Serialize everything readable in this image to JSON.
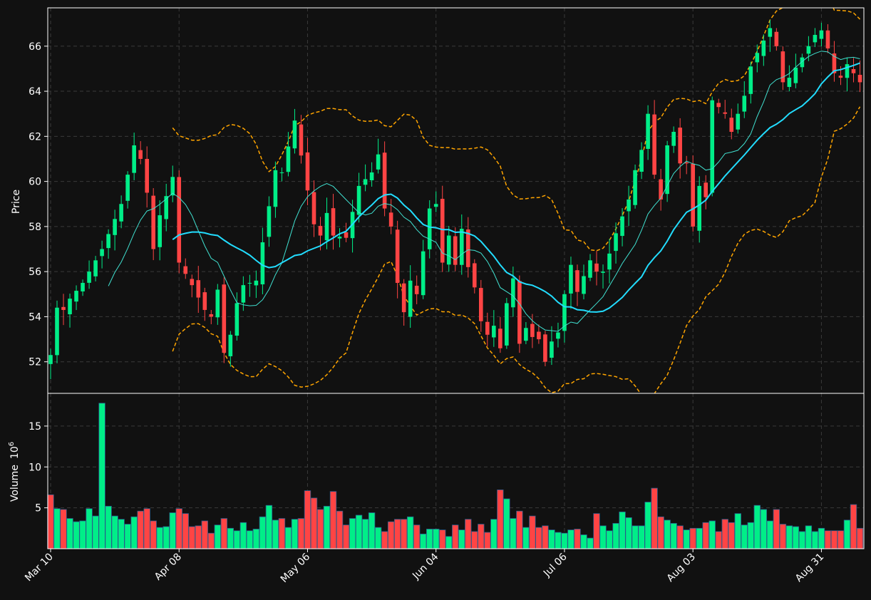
{
  "chart_data": {
    "type": "candlestick",
    "colors": {
      "background": "#111111",
      "up": "#00ee88",
      "down": "#ff4444",
      "sma_fast": "#40e0d0",
      "sma_slow": "#22ddff",
      "bands": "#ffa500",
      "grid": "#3a3a3a",
      "axis": "#ffffff"
    },
    "price_panel": {
      "ylabel": "Price",
      "ylim": [
        50.6,
        67.7
      ],
      "yticks": [
        52,
        54,
        56,
        58,
        60,
        62,
        64,
        66
      ]
    },
    "volume_panel": {
      "ylabel": "Volume",
      "ylabel_exp": "10",
      "ylabel_sup": "6",
      "ylim": [
        0,
        19
      ],
      "yticks": [
        5,
        10,
        15
      ]
    },
    "xticks": [
      {
        "i": 0,
        "label": "Mar 10"
      },
      {
        "i": 20,
        "label": "Apr 08"
      },
      {
        "i": 40,
        "label": "May 06"
      },
      {
        "i": 60,
        "label": "Jun 04"
      },
      {
        "i": 80,
        "label": "Jul 06"
      },
      {
        "i": 100,
        "label": "Aug 03"
      },
      {
        "i": 120,
        "label": "Aug 31"
      }
    ],
    "n_bars": 127,
    "grid": true,
    "close_anchors": [
      [
        0,
        52.3
      ],
      [
        1,
        54.4
      ],
      [
        2,
        54.3
      ],
      [
        3,
        54.8
      ],
      [
        5,
        55.5
      ],
      [
        7,
        56.5
      ],
      [
        8,
        57.0
      ],
      [
        11,
        59.0
      ],
      [
        13,
        61.6
      ],
      [
        14,
        61.0
      ],
      [
        15,
        59.5
      ],
      [
        16,
        57.0
      ],
      [
        17,
        58.5
      ],
      [
        19,
        60.2
      ],
      [
        20,
        56.4
      ],
      [
        22,
        55.4
      ],
      [
        24,
        54.3
      ],
      [
        25,
        54.0
      ],
      [
        26,
        55.2
      ],
      [
        27,
        52.4
      ],
      [
        28,
        53.2
      ],
      [
        29,
        54.6
      ],
      [
        30,
        55.4
      ],
      [
        32,
        55.6
      ],
      [
        33,
        57.3
      ],
      [
        35,
        60.5
      ],
      [
        36,
        60.4
      ],
      [
        38,
        62.7
      ],
      [
        40,
        59.6
      ],
      [
        41,
        58.1
      ],
      [
        42,
        57.6
      ],
      [
        43,
        58.6
      ],
      [
        44,
        57.6
      ],
      [
        46,
        57.5
      ],
      [
        48,
        59.8
      ],
      [
        50,
        60.4
      ],
      [
        51,
        61.2
      ],
      [
        52,
        58.8
      ],
      [
        53,
        58.0
      ],
      [
        54,
        55.5
      ],
      [
        55,
        54.2
      ],
      [
        56,
        55.6
      ],
      [
        57,
        55.0
      ],
      [
        59,
        58.8
      ],
      [
        60,
        59.0
      ],
      [
        61,
        56.4
      ],
      [
        62,
        57.6
      ],
      [
        63,
        56.3
      ],
      [
        64,
        57.9
      ],
      [
        65,
        56.2
      ],
      [
        66,
        55.3
      ],
      [
        67,
        53.8
      ],
      [
        68,
        53.2
      ],
      [
        69,
        53.6
      ],
      [
        70,
        52.6
      ],
      [
        71,
        54.6
      ],
      [
        72,
        55.7
      ],
      [
        73,
        52.8
      ],
      [
        74,
        53.5
      ],
      [
        75,
        53.1
      ],
      [
        76,
        53.0
      ],
      [
        77,
        52.0
      ],
      [
        78,
        52.9
      ],
      [
        79,
        53.3
      ],
      [
        80,
        55.0
      ],
      [
        81,
        56.3
      ],
      [
        82,
        55.1
      ],
      [
        84,
        56.5
      ],
      [
        85,
        56.0
      ],
      [
        86,
        56.0
      ],
      [
        87,
        56.8
      ],
      [
        88,
        57.7
      ],
      [
        90,
        59.2
      ],
      [
        91,
        60.5
      ],
      [
        92,
        61.4
      ],
      [
        93,
        63.0
      ],
      [
        94,
        60.3
      ],
      [
        95,
        59.2
      ],
      [
        96,
        61.6
      ],
      [
        97,
        62.2
      ],
      [
        98,
        60.8
      ],
      [
        99,
        60.8
      ],
      [
        100,
        58.0
      ],
      [
        101,
        59.8
      ],
      [
        102,
        59.3
      ],
      [
        103,
        63.6
      ],
      [
        104,
        63.3
      ],
      [
        105,
        63.0
      ],
      [
        106,
        62.2
      ],
      [
        107,
        63.0
      ],
      [
        108,
        63.8
      ],
      [
        109,
        65.1
      ],
      [
        110,
        65.7
      ],
      [
        112,
        66.8
      ],
      [
        113,
        66.0
      ],
      [
        114,
        64.4
      ],
      [
        115,
        64.6
      ],
      [
        117,
        65.5
      ],
      [
        118,
        66.0
      ],
      [
        119,
        66.5
      ],
      [
        120,
        66.7
      ],
      [
        121,
        65.9
      ],
      [
        122,
        64.8
      ],
      [
        123,
        64.6
      ],
      [
        124,
        65.2
      ],
      [
        126,
        64.4
      ]
    ],
    "volume_anchors": [
      [
        0,
        6.6
      ],
      [
        1,
        4.9
      ],
      [
        2,
        4.8
      ],
      [
        3,
        3.7
      ],
      [
        4,
        3.3
      ],
      [
        5,
        3.4
      ],
      [
        6,
        4.9
      ],
      [
        7,
        4.0
      ],
      [
        8,
        17.8
      ],
      [
        9,
        5.2
      ],
      [
        10,
        4.0
      ],
      [
        11,
        3.6
      ],
      [
        12,
        3.0
      ],
      [
        13,
        3.9
      ],
      [
        14,
        4.6
      ],
      [
        15,
        4.9
      ],
      [
        16,
        3.4
      ],
      [
        17,
        2.6
      ],
      [
        18,
        2.7
      ],
      [
        19,
        4.4
      ],
      [
        20,
        4.9
      ],
      [
        21,
        4.3
      ],
      [
        22,
        2.7
      ],
      [
        23,
        2.8
      ],
      [
        24,
        3.4
      ],
      [
        25,
        1.9
      ],
      [
        26,
        2.9
      ],
      [
        27,
        3.7
      ],
      [
        28,
        2.5
      ],
      [
        29,
        2.2
      ],
      [
        30,
        3.2
      ],
      [
        31,
        2.2
      ],
      [
        32,
        2.4
      ],
      [
        33,
        3.9
      ],
      [
        34,
        5.3
      ],
      [
        35,
        3.5
      ],
      [
        36,
        3.7
      ],
      [
        37,
        2.6
      ],
      [
        38,
        3.6
      ],
      [
        39,
        3.7
      ],
      [
        40,
        7.1
      ],
      [
        41,
        6.2
      ],
      [
        42,
        4.8
      ],
      [
        43,
        5.2
      ],
      [
        44,
        7.0
      ],
      [
        45,
        4.6
      ],
      [
        46,
        2.9
      ],
      [
        47,
        3.7
      ],
      [
        48,
        4.1
      ],
      [
        49,
        3.6
      ],
      [
        50,
        4.4
      ],
      [
        51,
        2.6
      ],
      [
        52,
        2.1
      ],
      [
        53,
        3.3
      ],
      [
        54,
        3.6
      ],
      [
        55,
        3.6
      ],
      [
        56,
        3.9
      ],
      [
        57,
        2.9
      ],
      [
        58,
        1.8
      ],
      [
        59,
        2.4
      ],
      [
        60,
        2.4
      ],
      [
        61,
        2.3
      ],
      [
        62,
        1.5
      ],
      [
        63,
        2.9
      ],
      [
        64,
        2.3
      ],
      [
        65,
        3.6
      ],
      [
        66,
        2.1
      ],
      [
        67,
        3.0
      ],
      [
        68,
        2.0
      ],
      [
        69,
        3.6
      ],
      [
        70,
        7.2
      ],
      [
        71,
        6.1
      ],
      [
        72,
        3.7
      ],
      [
        73,
        4.6
      ],
      [
        74,
        2.6
      ],
      [
        75,
        4.0
      ],
      [
        76,
        2.6
      ],
      [
        77,
        2.8
      ],
      [
        78,
        2.3
      ],
      [
        79,
        2.0
      ],
      [
        80,
        1.9
      ],
      [
        81,
        2.3
      ],
      [
        82,
        2.4
      ],
      [
        83,
        1.7
      ],
      [
        84,
        1.3
      ],
      [
        85,
        4.3
      ],
      [
        86,
        2.8
      ],
      [
        87,
        2.2
      ],
      [
        88,
        3.1
      ],
      [
        89,
        4.5
      ],
      [
        90,
        3.8
      ],
      [
        91,
        2.8
      ],
      [
        92,
        2.8
      ],
      [
        93,
        5.7
      ],
      [
        94,
        7.4
      ],
      [
        95,
        3.9
      ],
      [
        96,
        3.5
      ],
      [
        97,
        3.1
      ],
      [
        98,
        2.8
      ],
      [
        99,
        2.3
      ],
      [
        100,
        2.5
      ],
      [
        101,
        2.5
      ],
      [
        102,
        3.2
      ],
      [
        103,
        3.4
      ],
      [
        104,
        2.1
      ],
      [
        105,
        3.6
      ],
      [
        106,
        3.2
      ],
      [
        107,
        4.3
      ],
      [
        108,
        2.9
      ],
      [
        109,
        3.2
      ],
      [
        110,
        5.3
      ],
      [
        111,
        4.8
      ],
      [
        112,
        3.4
      ],
      [
        113,
        4.8
      ],
      [
        114,
        3.0
      ],
      [
        115,
        2.8
      ],
      [
        116,
        2.7
      ],
      [
        117,
        2.1
      ],
      [
        118,
        2.8
      ],
      [
        119,
        2.1
      ],
      [
        120,
        2.5
      ],
      [
        121,
        2.2
      ],
      [
        122,
        2.2
      ],
      [
        123,
        2.2
      ],
      [
        124,
        3.5
      ],
      [
        125,
        5.4
      ],
      [
        126,
        2.5
      ]
    ]
  }
}
